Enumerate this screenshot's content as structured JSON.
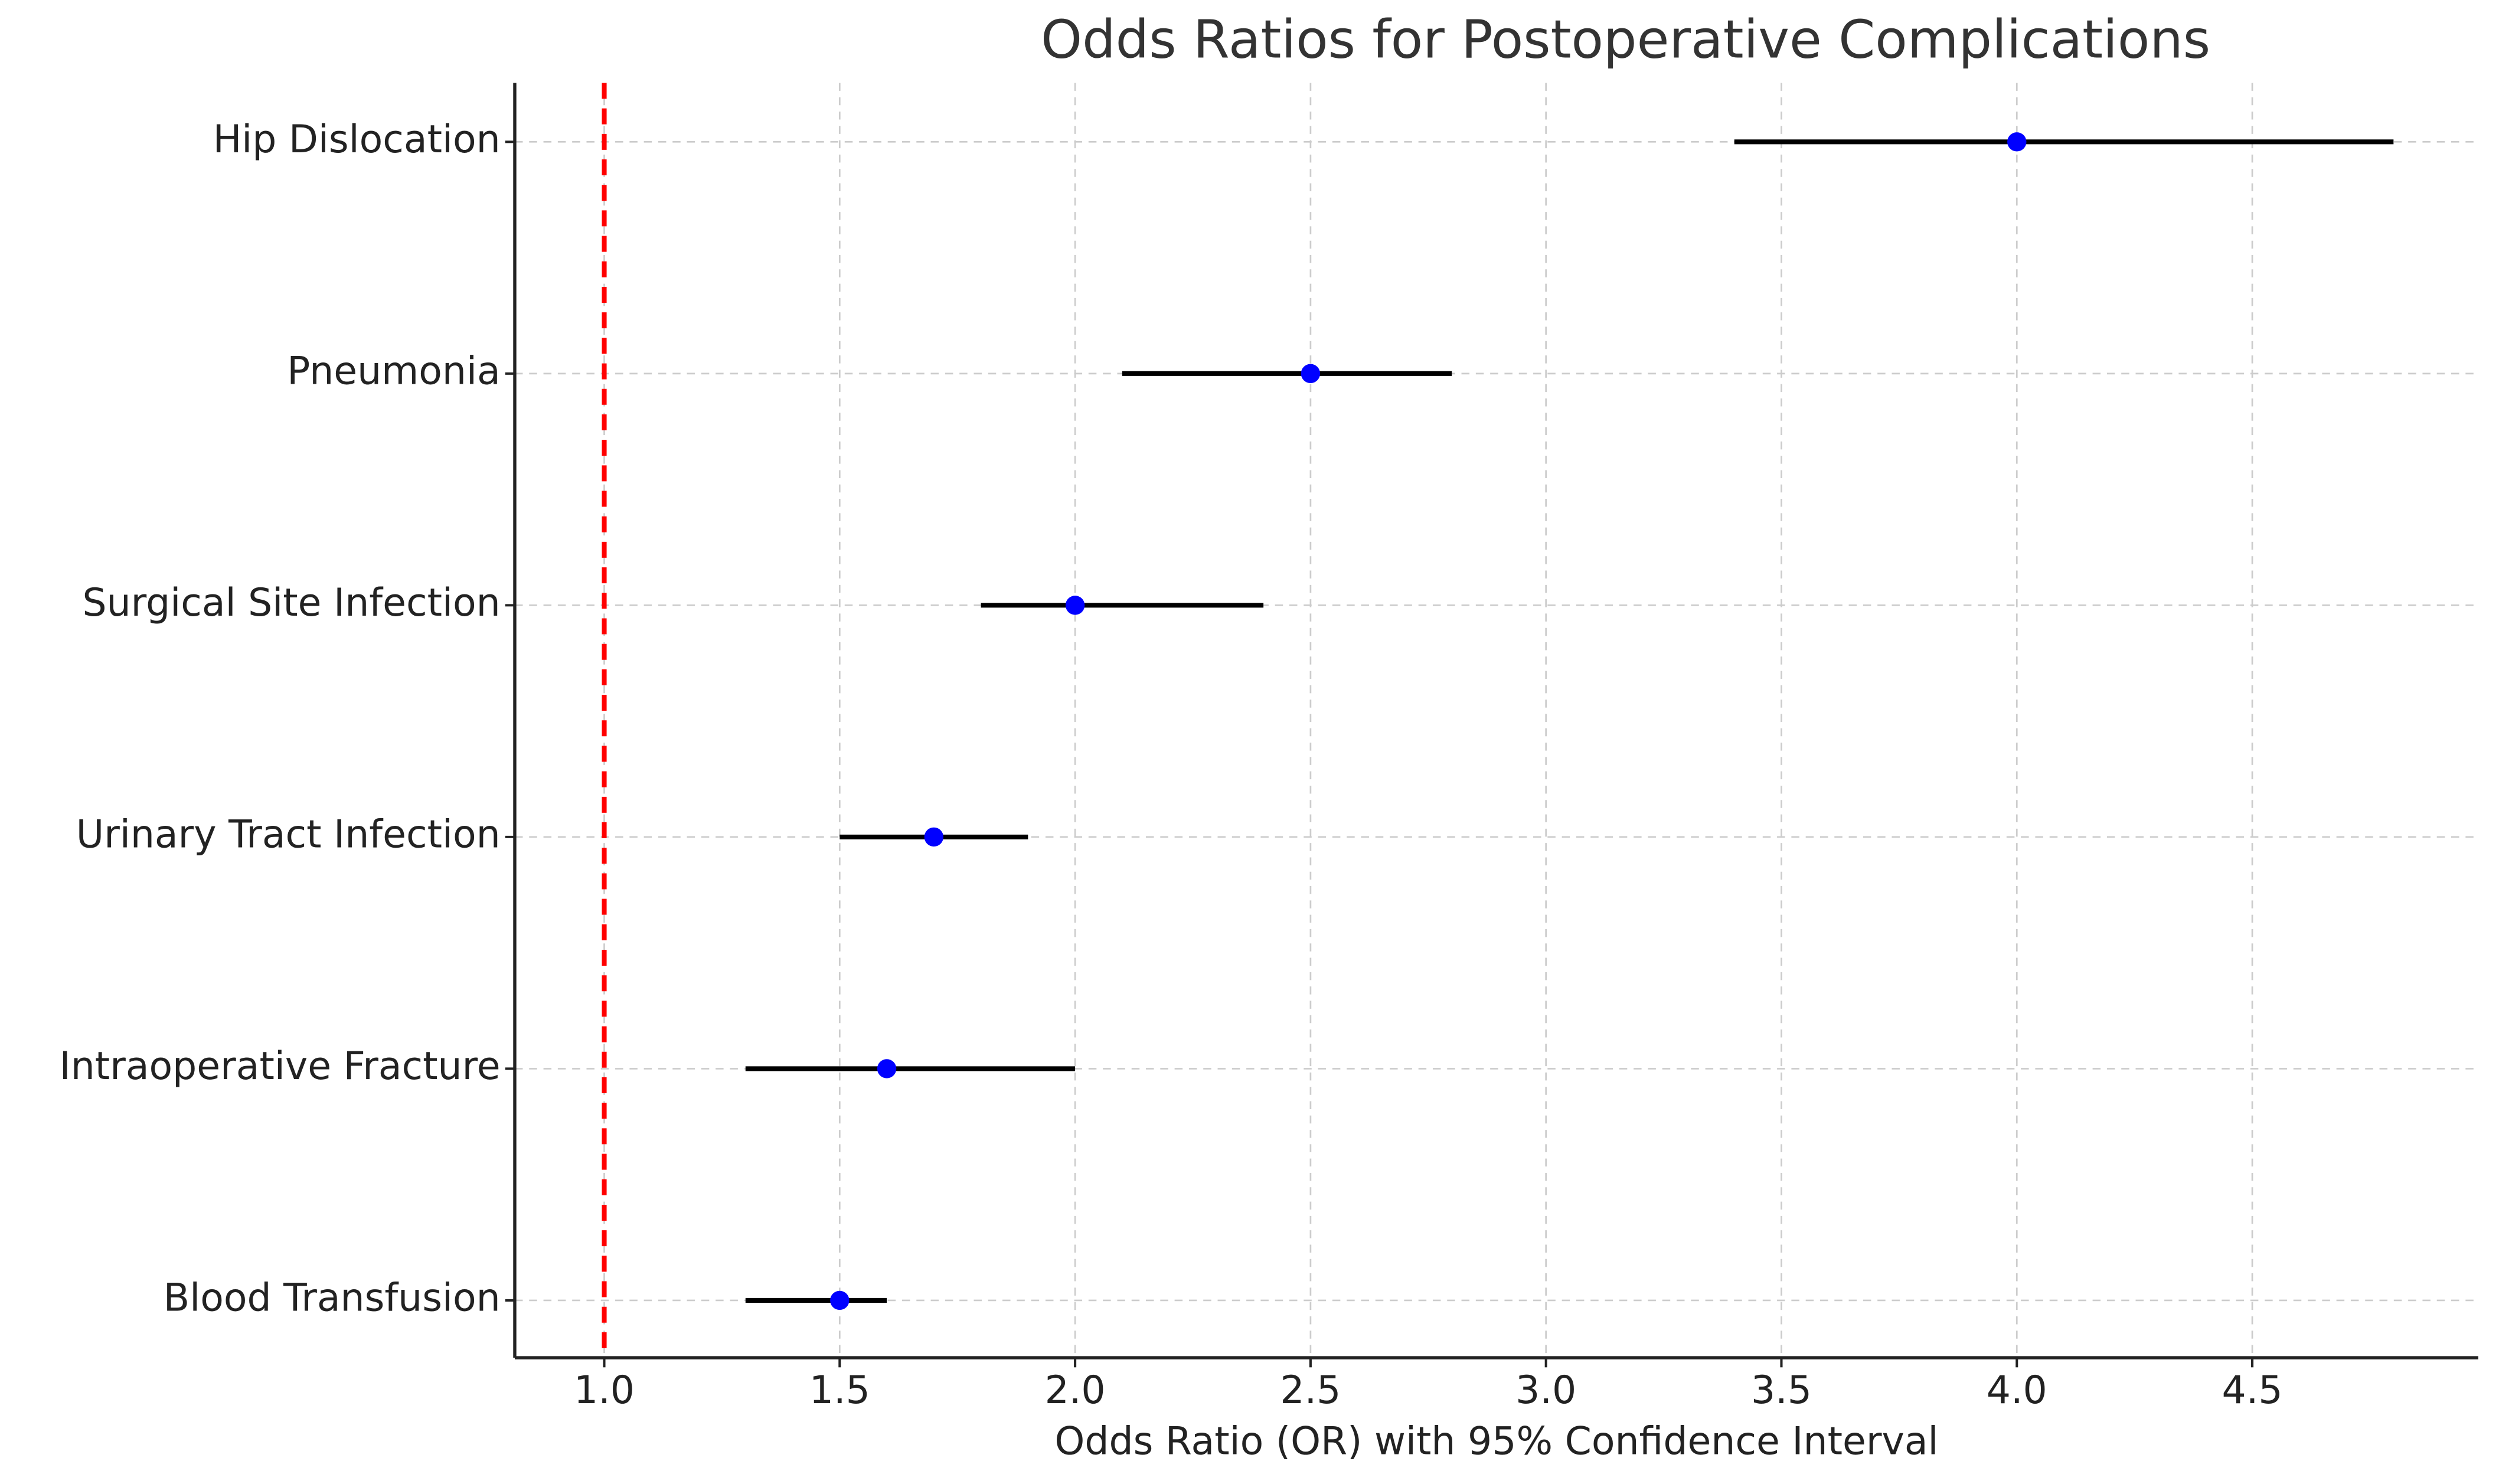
{
  "chart_data": {
    "type": "forest",
    "title": "Odds Ratios for Postoperative Complications",
    "x_label": "Odds Ratio (OR) with 95% Confidence Interval",
    "categories": [
      "Hip Dislocation",
      "Pneumonia",
      "Surgical Site Infection",
      "Urinary Tract Infection",
      "Intraoperative Fracture",
      "Blood Transfusion"
    ],
    "values": [
      4.0,
      2.5,
      2.0,
      1.7,
      1.6,
      1.5
    ],
    "lower": [
      3.4,
      2.1,
      1.8,
      1.5,
      1.3,
      1.3
    ],
    "upper": [
      4.8,
      2.8,
      2.4,
      1.9,
      2.0,
      1.6
    ],
    "color": "#0000ff",
    "error_color": "#000000",
    "xlim": [
      0.81,
      4.98
    ],
    "xticks": [
      {
        "value": 1,
        "label": "1.0"
      },
      {
        "value": 1.5,
        "label": "1.5"
      },
      {
        "value": 2,
        "label": "2.0"
      },
      {
        "value": 2.5,
        "label": "2.5"
      },
      {
        "value": 3,
        "label": "3.0"
      },
      {
        "value": 3.5,
        "label": "3.5"
      },
      {
        "value": 4,
        "label": "4.0"
      },
      {
        "value": 4.5,
        "label": "4.5"
      }
    ],
    "reference_line": {
      "value": 1,
      "color": "#ff0000"
    },
    "grid": true
  }
}
